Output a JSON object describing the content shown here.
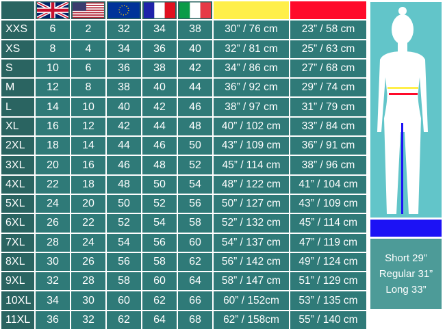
{
  "header": {
    "flags": [
      "uk-flag",
      "us-flag",
      "eu-flag",
      "france-flag",
      "italy-flag"
    ],
    "measure_colors": {
      "chest": "#ffef4a",
      "waist": "#ff0a2a"
    }
  },
  "rows": [
    [
      "XXS",
      "6",
      "2",
      "32",
      "34",
      "38",
      "30” / 76 cm",
      "23” / 58 cm"
    ],
    [
      "XS",
      "8",
      "4",
      "34",
      "36",
      "40",
      "32” / 81 cm",
      "25” / 63 cm"
    ],
    [
      "S",
      "10",
      "6",
      "36",
      "38",
      "42",
      "34” / 86 cm",
      "27” / 68 cm"
    ],
    [
      "M",
      "12",
      "8",
      "38",
      "40",
      "44",
      "36” / 92 cm",
      "29” / 74 cm"
    ],
    [
      "L",
      "14",
      "10",
      "40",
      "42",
      "46",
      "38” / 97 cm",
      "31” / 79 cm"
    ],
    [
      "XL",
      "16",
      "12",
      "42",
      "44",
      "48",
      "40” / 102 cm",
      "33” / 84 cm"
    ],
    [
      "2XL",
      "18",
      "14",
      "44",
      "46",
      "50",
      "43” / 109 cm",
      "36” / 91 cm"
    ],
    [
      "3XL",
      "20",
      "16",
      "46",
      "48",
      "52",
      "45” / 114 cm",
      "38” / 96 cm"
    ],
    [
      "4XL",
      "22",
      "18",
      "48",
      "50",
      "54",
      "48” / 122 cm",
      "41” / 104 cm"
    ],
    [
      "5XL",
      "24",
      "20",
      "50",
      "52",
      "56",
      "50” / 127 cm",
      "43” / 109 cm"
    ],
    [
      "6XL",
      "26",
      "22",
      "52",
      "54",
      "58",
      "52” / 132 cm",
      "45” / 114 cm"
    ],
    [
      "7XL",
      "28",
      "24",
      "54",
      "56",
      "60",
      "54” / 137 cm",
      "47” / 119 cm"
    ],
    [
      "8XL",
      "30",
      "26",
      "56",
      "58",
      "62",
      "56” / 142 cm",
      "49” / 124 cm"
    ],
    [
      "9XL",
      "32",
      "28",
      "58",
      "60",
      "64",
      "58” / 147 cm",
      "51” / 129 cm"
    ],
    [
      "10XL",
      "34",
      "30",
      "60",
      "62",
      "66",
      "60” / 152cm",
      "53” / 135 cm"
    ],
    [
      "11XL",
      "36",
      "32",
      "62",
      "64",
      "68",
      "62” / 158cm",
      "55” / 140 cm"
    ]
  ],
  "lengths": [
    "Short 29”",
    "Regular 31”",
    "Long 33”"
  ],
  "inseam_color": "#1c12f5"
}
